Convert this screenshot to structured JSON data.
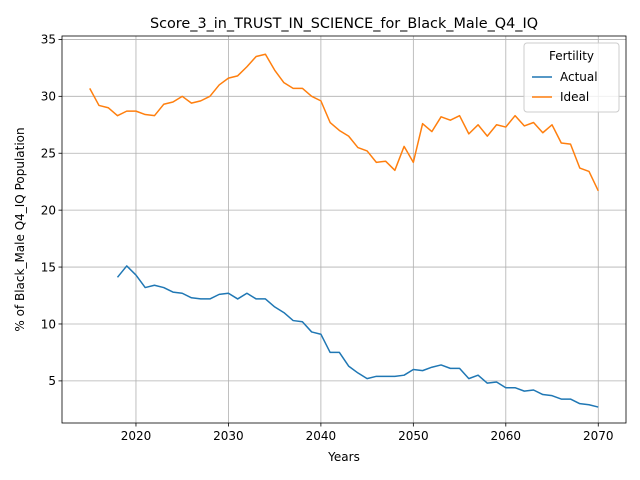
{
  "chart_data": {
    "type": "line",
    "title": "Score_3_in_TRUST_IN_SCIENCE_for_Black_Male_Q4_IQ",
    "xlabel": "Years",
    "ylabel": "% of Black_Male Q4_IQ Population",
    "xlim": [
      2012,
      2073
    ],
    "ylim": [
      1.3,
      35.3
    ],
    "xticks": [
      2020,
      2030,
      2040,
      2050,
      2060,
      2070
    ],
    "yticks": [
      5,
      10,
      15,
      20,
      25,
      30,
      35
    ],
    "grid": true,
    "legend": {
      "title": "Fertility",
      "placement": "top-right"
    },
    "series": [
      {
        "name": "Actual",
        "color": "#1f77b4",
        "x": [
          2018,
          2019,
          2020,
          2021,
          2022,
          2023,
          2024,
          2025,
          2026,
          2027,
          2028,
          2029,
          2030,
          2031,
          2032,
          2033,
          2034,
          2035,
          2036,
          2037,
          2038,
          2039,
          2040,
          2041,
          2042,
          2043,
          2044,
          2045,
          2046,
          2047,
          2048,
          2049,
          2050,
          2051,
          2052,
          2053,
          2054,
          2055,
          2056,
          2057,
          2058,
          2059,
          2060,
          2061,
          2062,
          2063,
          2064,
          2065,
          2066,
          2067,
          2068,
          2069,
          2070
        ],
        "values": [
          14.1,
          15.1,
          14.3,
          13.2,
          13.4,
          13.2,
          12.8,
          12.7,
          12.3,
          12.2,
          12.2,
          12.6,
          12.7,
          12.2,
          12.7,
          12.2,
          12.2,
          11.5,
          11.0,
          10.3,
          10.2,
          9.3,
          9.1,
          7.5,
          7.5,
          6.3,
          5.7,
          5.2,
          5.4,
          5.4,
          5.4,
          5.5,
          6.0,
          5.9,
          6.2,
          6.4,
          6.1,
          6.1,
          5.2,
          5.5,
          4.8,
          4.9,
          4.4,
          4.4,
          4.1,
          4.2,
          3.8,
          3.7,
          3.4,
          3.4,
          3.0,
          2.9,
          2.7
        ]
      },
      {
        "name": "Ideal",
        "color": "#ff7f0e",
        "x": [
          2015,
          2016,
          2017,
          2018,
          2019,
          2020,
          2021,
          2022,
          2023,
          2024,
          2025,
          2026,
          2027,
          2028,
          2029,
          2030,
          2031,
          2032,
          2033,
          2034,
          2035,
          2036,
          2037,
          2038,
          2039,
          2040,
          2041,
          2042,
          2043,
          2044,
          2045,
          2046,
          2047,
          2048,
          2049,
          2050,
          2051,
          2052,
          2053,
          2054,
          2055,
          2056,
          2057,
          2058,
          2059,
          2060,
          2061,
          2062,
          2063,
          2064,
          2065,
          2066,
          2067,
          2068,
          2069,
          2070
        ],
        "values": [
          30.7,
          29.2,
          29.0,
          28.3,
          28.7,
          28.7,
          28.4,
          28.3,
          29.3,
          29.5,
          30.0,
          29.4,
          29.6,
          30.0,
          31.0,
          31.6,
          31.8,
          32.6,
          33.5,
          33.7,
          32.3,
          31.2,
          30.7,
          30.7,
          30.0,
          29.6,
          27.7,
          27.0,
          26.5,
          25.5,
          25.2,
          24.2,
          24.3,
          23.5,
          25.6,
          24.2,
          27.6,
          26.9,
          28.2,
          27.9,
          28.3,
          26.7,
          27.5,
          26.5,
          27.5,
          27.3,
          28.3,
          27.4,
          27.7,
          26.8,
          27.5,
          25.9,
          25.8,
          23.7,
          23.4,
          21.7
        ]
      }
    ]
  }
}
